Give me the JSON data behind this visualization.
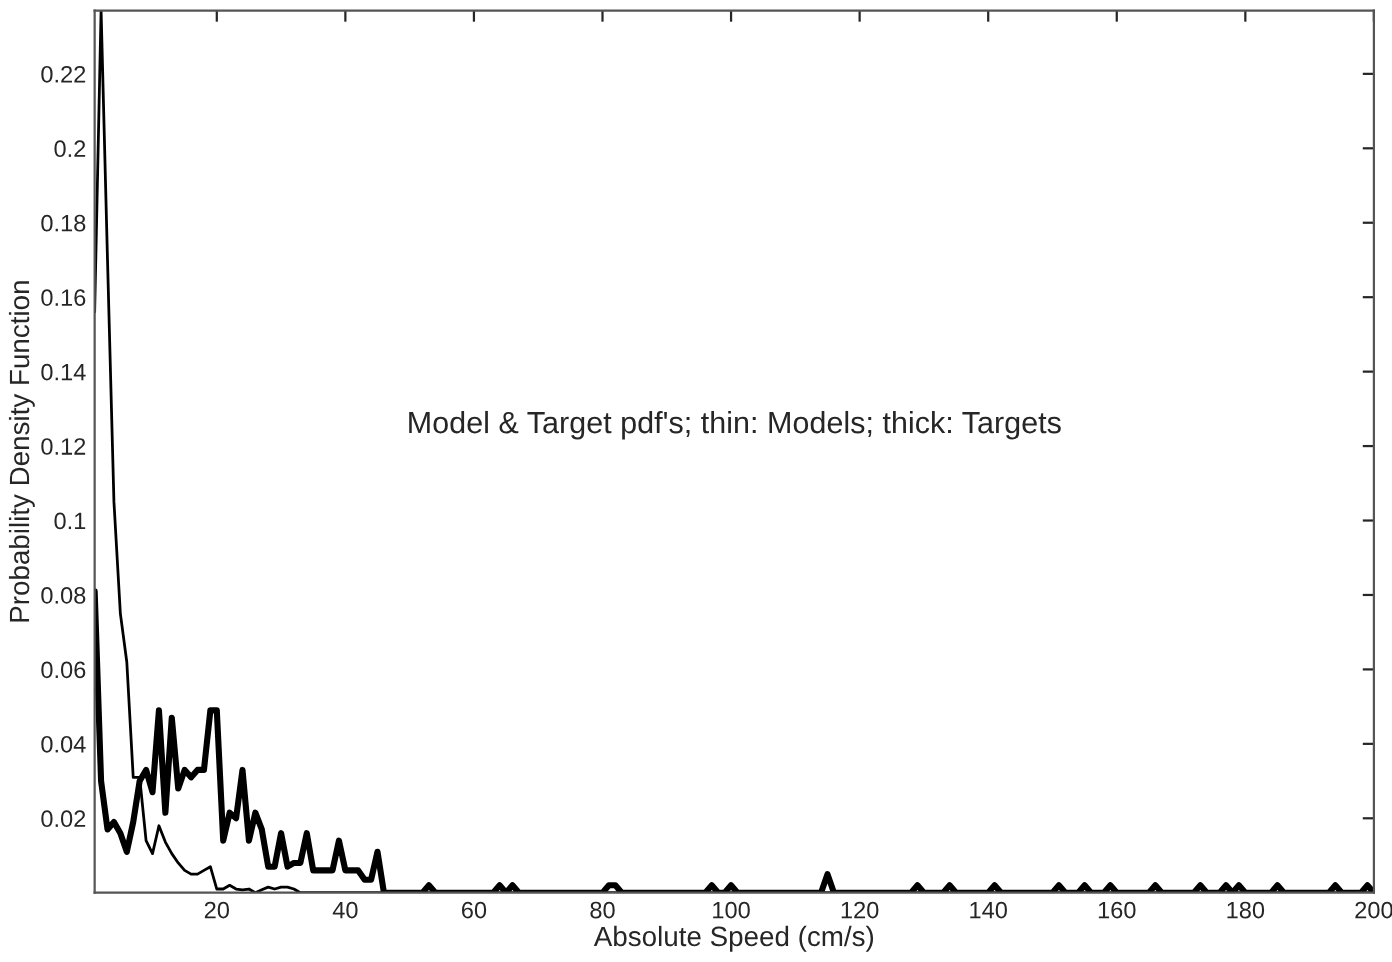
{
  "chart_data": {
    "type": "line",
    "xlabel": "Absolute Speed (cm/s)",
    "ylabel": "Probability Density Function",
    "annotations": [
      "Model & Target pdf's; thin: Models; thick: Targets"
    ],
    "xlim": [
      1,
      200
    ],
    "ylim": [
      0,
      0.237
    ],
    "xticks": [
      20,
      40,
      60,
      80,
      100,
      120,
      140,
      160,
      180,
      200
    ],
    "yticks": [
      0.02,
      0.04,
      0.06,
      0.08,
      0.1,
      0.12,
      0.14,
      0.16,
      0.18,
      0.2,
      0.22
    ],
    "grid": false,
    "marker": "none",
    "line_style": "solid",
    "series": [
      {
        "color": "#000000",
        "x": [
          1,
          2,
          3,
          4,
          5,
          6,
          7,
          8,
          9,
          10,
          11,
          12,
          13,
          14,
          15,
          16,
          17,
          18,
          19,
          20,
          21,
          22,
          23,
          24,
          25,
          26,
          27,
          28,
          29,
          30,
          31,
          32,
          33,
          200
        ],
        "values": [
          0.156,
          0.237,
          0.17,
          0.105,
          0.075,
          0.062,
          0.031,
          0.031,
          0.014,
          0.0105,
          0.018,
          0.0136,
          0.0105,
          0.008,
          0.006,
          0.005,
          0.005,
          0.006,
          0.007,
          0.001,
          0.001,
          0.002,
          0.001,
          0.0008,
          0.001,
          0,
          0.0008,
          0.0015,
          0.001,
          0.0015,
          0.0015,
          0.001,
          0,
          0
        ]
      },
      {
        "color": "#000000",
        "x": [
          1,
          2,
          3,
          4,
          5,
          6,
          7,
          8,
          9,
          10,
          11,
          12,
          13,
          14,
          15,
          16,
          17,
          18,
          19,
          20,
          21,
          22,
          23,
          24,
          25,
          26,
          27,
          28,
          29,
          30,
          31,
          32,
          33,
          34,
          35,
          36,
          37,
          38,
          39,
          40,
          41,
          42,
          43,
          44,
          45,
          46,
          52,
          53,
          54,
          63,
          64,
          65,
          66,
          67,
          80,
          81,
          82,
          83,
          96,
          97,
          98,
          99,
          100,
          101,
          114,
          115,
          116,
          128,
          129,
          130,
          133,
          134,
          135,
          140,
          141,
          142,
          150,
          151,
          152,
          154,
          155,
          156,
          158,
          159,
          160,
          165,
          166,
          167,
          172,
          173,
          174,
          176,
          177,
          178,
          179,
          180,
          184,
          185,
          186,
          193,
          194,
          195,
          198,
          199,
          200
        ],
        "values": [
          0.081,
          0.03,
          0.017,
          0.019,
          0.016,
          0.011,
          0.019,
          0.03,
          0.033,
          0.027,
          0.049,
          0.0215,
          0.047,
          0.028,
          0.033,
          0.031,
          0.033,
          0.033,
          0.049,
          0.049,
          0.014,
          0.0215,
          0.02,
          0.033,
          0.014,
          0.0215,
          0.017,
          0.007,
          0.007,
          0.016,
          0.007,
          0.008,
          0.008,
          0.016,
          0.006,
          0.006,
          0.006,
          0.006,
          0.014,
          0.006,
          0.006,
          0.006,
          0.0035,
          0.0035,
          0.011,
          0,
          0,
          0.002,
          0,
          0,
          0.002,
          0,
          0.002,
          0,
          0,
          0.002,
          0.002,
          0,
          0,
          0.002,
          0,
          0,
          0.002,
          0,
          0,
          0.005,
          0,
          0,
          0.002,
          0,
          0,
          0.002,
          0,
          0,
          0.002,
          0,
          0,
          0.002,
          0,
          0,
          0.002,
          0,
          0,
          0.002,
          0,
          0,
          0.002,
          0,
          0,
          0.002,
          0,
          0,
          0.002,
          0,
          0.002,
          0,
          0,
          0.002,
          0,
          0,
          0.002,
          0,
          0,
          0.002,
          0
        ]
      }
    ]
  }
}
